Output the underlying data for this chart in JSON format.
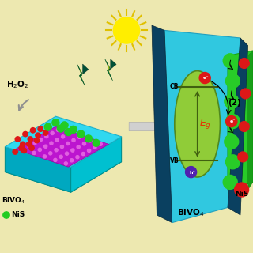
{
  "bg_color": "#ede8b0",
  "sun_color": "#ffee00",
  "sun_ray_color": "#e0c000",
  "left_crystal": {
    "top_color": "#00d8e8",
    "left_color": "#00a8b8",
    "right_color": "#00b8c8",
    "bottom_color": "#009090",
    "purple_color": "#c000c0",
    "purple_dot_color": "#d060d0",
    "red_dot_color": "#dd2020",
    "green_dot_color": "#22cc22",
    "arrow_color": "#9090a0",
    "h2o2_label": "H₂O₂",
    "bivo4_label": "BiVO₄",
    "nis_label": "NiS",
    "nis_dot_color": "#22cc22"
  },
  "lightning_green": "#007830",
  "lightning_yellow": "#d8d800",
  "arrow_gray": "#c8c8c8",
  "right_panel": {
    "bivo4_front_color": "#30c8e0",
    "bivo4_dark_color": "#0a4a68",
    "nis_color": "#28cc28",
    "nis_dark_color": "#18a018",
    "band_fill": "#8ccc30",
    "band_edge": "#508820",
    "cb_line_color": "#406010",
    "eg_color": "#e83000",
    "electron_color": "#dd1818",
    "hole_color": "#5020b0",
    "label_bivo4": "BiVO₄",
    "label_nis": "NiS",
    "label_2": "(2)"
  }
}
